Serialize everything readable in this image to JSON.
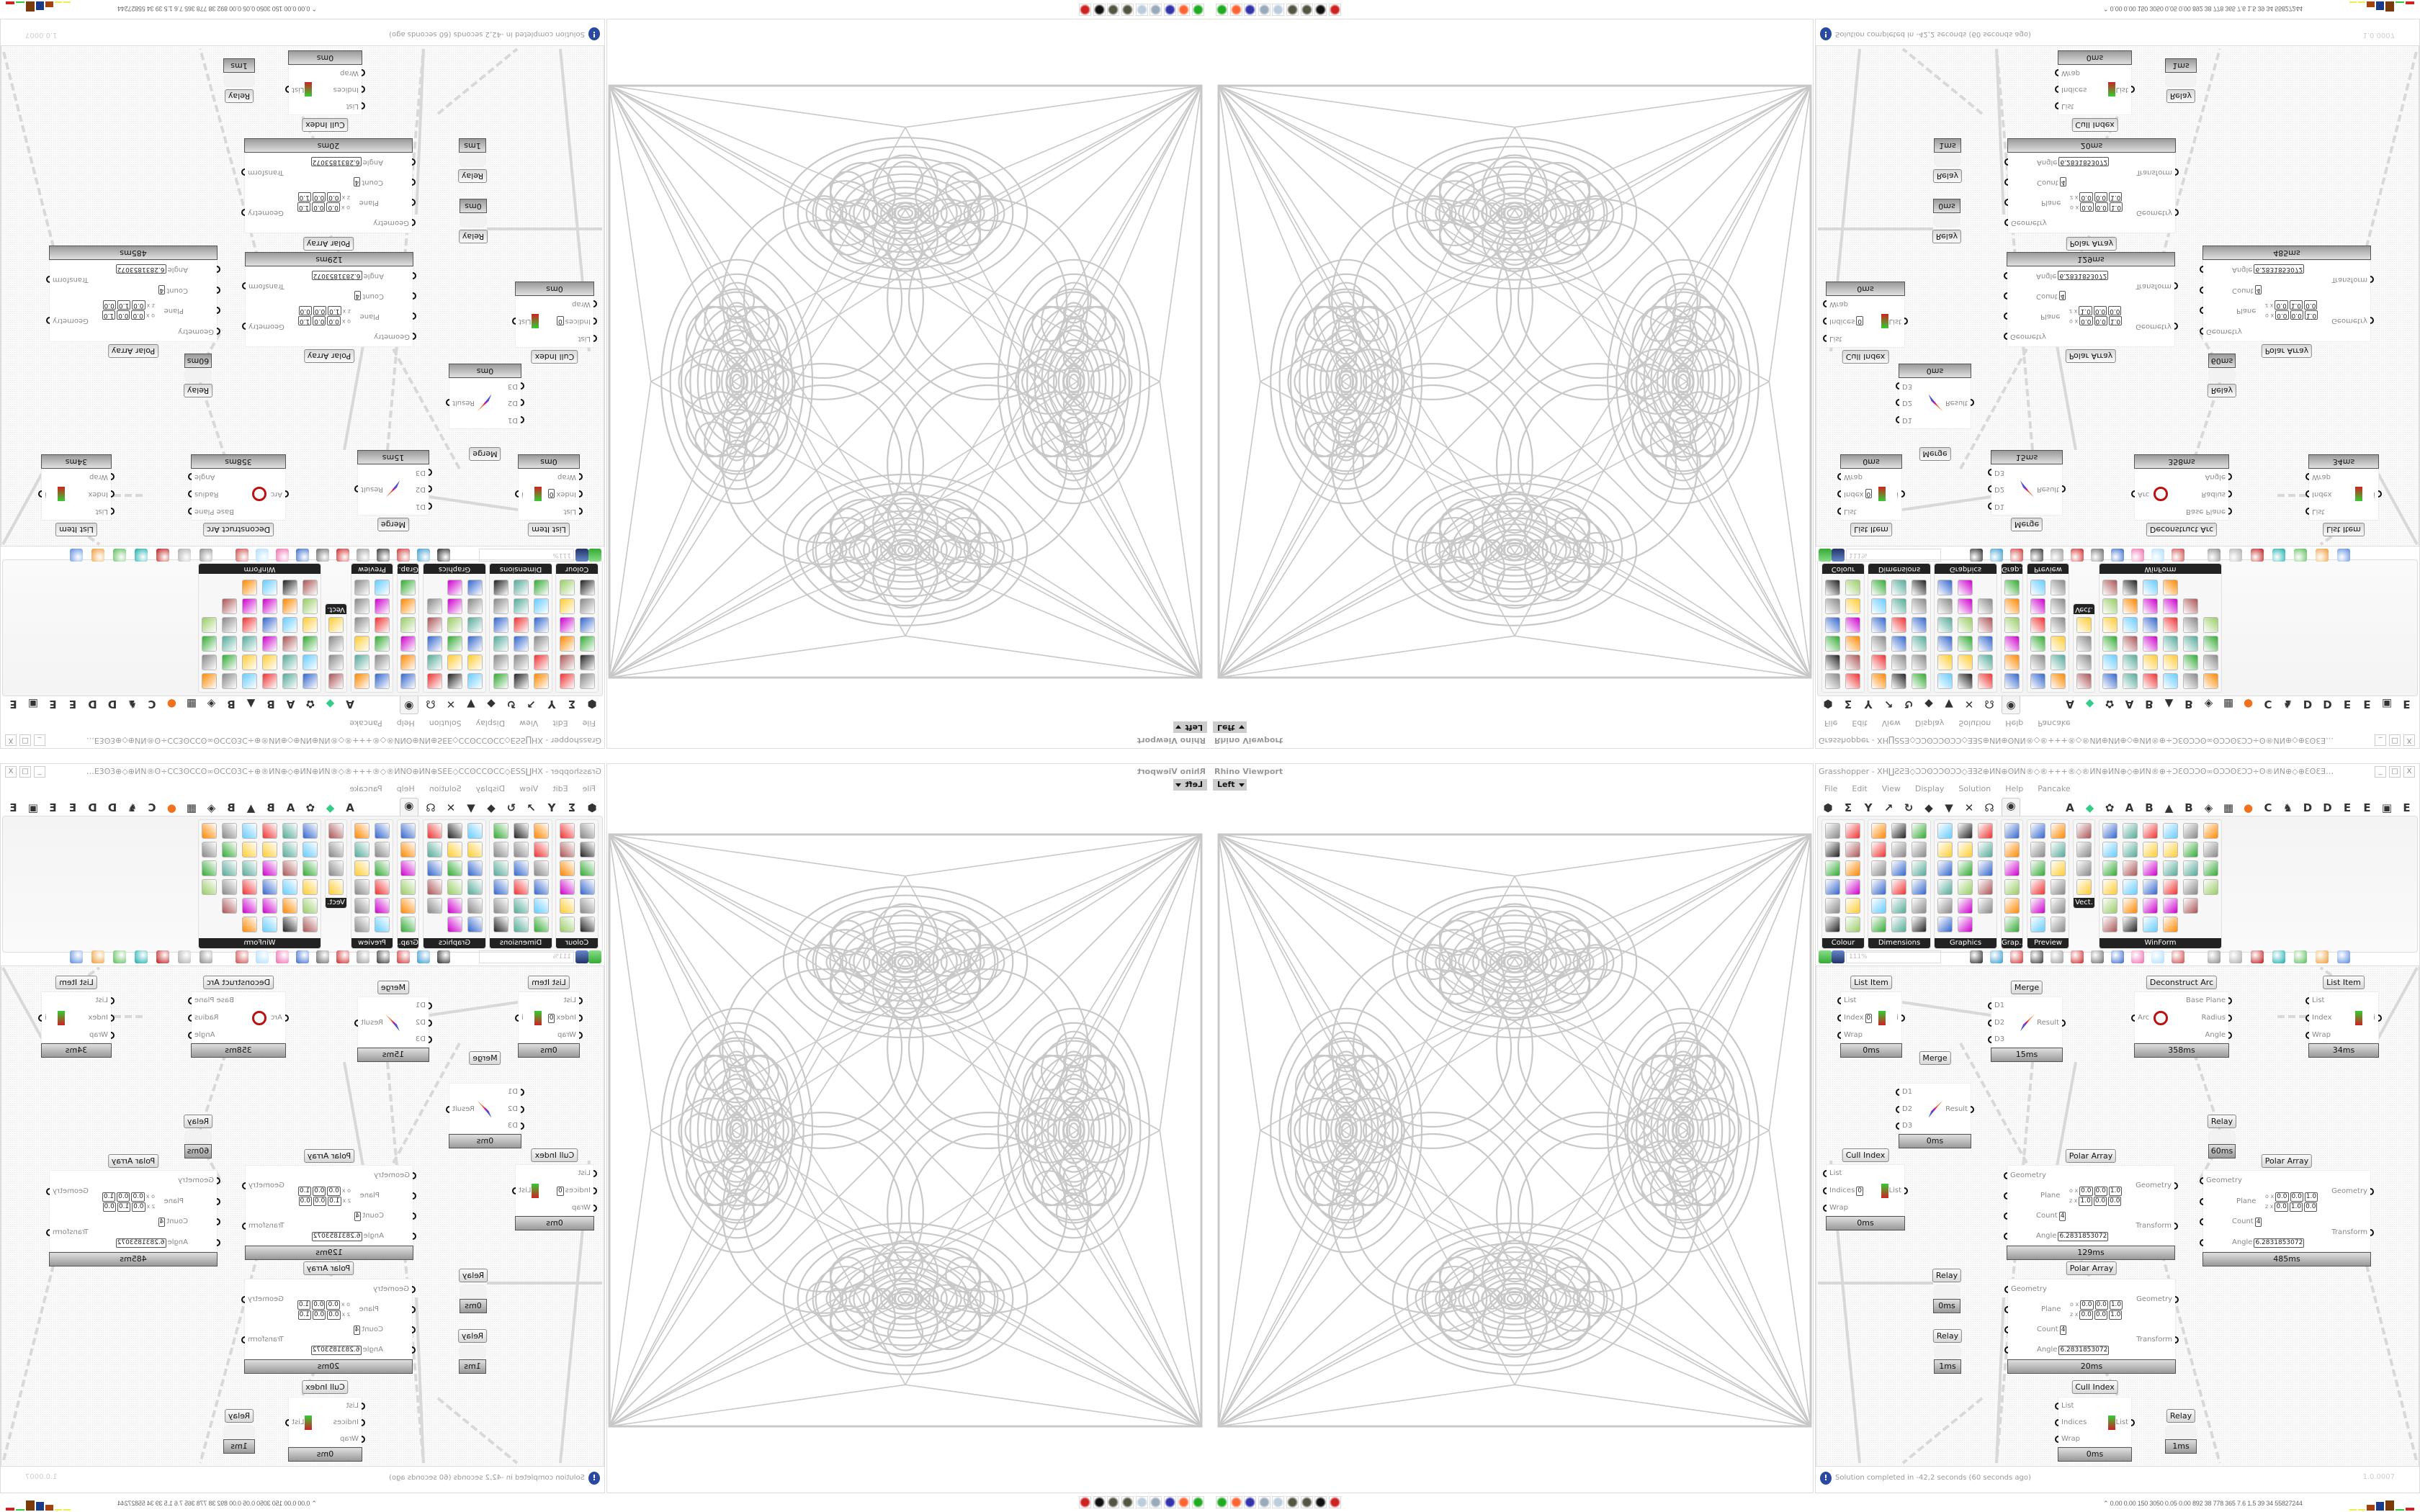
{
  "viewport": {
    "title": "Rhino Viewport",
    "view": "Left"
  },
  "grasshopper": {
    "title": "Grasshopper - XH∐ƧƧƎ◇ƆƆʘƆƆʘƆƆ◇ƎƎƧ⊕ИN⊕ʘИN®◇®+++®◇®ИN⊕ИN⊕◇⊕ИN®⊕÷ƆƐʘƆƆʘ∞ʘƆƆʘƐƆƆ÷ʘ®ИN⊕◇⊕ƐʘƐƎ⊞÷ƧƧ÷⊞ƐʘƐƎ⊕◇⊕ʘƆƆƎ⊞⊕÷ƆƆ...",
    "window_buttons": [
      "_",
      "□",
      "X"
    ],
    "menu": [
      "File",
      "Edit",
      "View",
      "Display",
      "Solution",
      "Help",
      "Pancake"
    ],
    "tabs_left": [
      "⬢",
      "Σ",
      "Y",
      "↗",
      "↻",
      "◆",
      "▼",
      "✕",
      "☊",
      "◉"
    ],
    "tabs_right": [
      "A",
      "◆",
      "✿",
      "A",
      "B",
      "▲",
      "B",
      "◈",
      "▦",
      "●",
      "C",
      "♞",
      "D",
      "D",
      "E",
      "E",
      "▣",
      "E"
    ],
    "active_tab_icon": "eye-icon",
    "ribbon_panels": [
      "Colour",
      "Dimensions",
      "Graphics",
      "Grap...",
      "Preview",
      "Vect.",
      "WinForm"
    ],
    "zoom": "111%",
    "status": "Solution completed in -42,2 seconds (60 seconds ago)",
    "version": "1.0.0007",
    "perf": "0.00 0.00 150 3050 0.05 0.00 892  38  778  365  7.6  1.5  39  34  55827244"
  },
  "canvas": {
    "components": [
      {
        "name": "List Item",
        "inputs": [
          {
            "label": "List"
          },
          {
            "label": "Index",
            "values": [
              "0"
            ]
          },
          {
            "label": "Wrap"
          }
        ],
        "outputs": [
          {
            "label": "i"
          }
        ],
        "time": "0ms"
      },
      {
        "name": "Merge",
        "inputs": [
          {
            "label": "D1"
          },
          {
            "label": "D2"
          },
          {
            "label": "D3"
          }
        ],
        "outputs": [
          {
            "label": "Result"
          }
        ],
        "time": "15ms"
      },
      {
        "name": "Deconstruct Arc",
        "inputs": [
          {
            "label": "Arc"
          }
        ],
        "outputs": [
          {
            "label": "Base Plane"
          },
          {
            "label": "Radius"
          },
          {
            "label": "Angle"
          }
        ],
        "time": "358ms"
      },
      {
        "name": "List Item",
        "inputs": [
          {
            "label": "List"
          },
          {
            "label": "Index"
          },
          {
            "label": "Wrap"
          }
        ],
        "outputs": [
          {
            "label": "i"
          }
        ],
        "time": "34ms"
      },
      {
        "name": "Merge",
        "inputs": [
          {
            "label": "D1"
          },
          {
            "label": "D2"
          },
          {
            "label": "D3"
          }
        ],
        "outputs": [
          {
            "label": "Result"
          }
        ],
        "time": "0ms"
      },
      {
        "name": "Relay",
        "inputs": [],
        "outputs": [],
        "time": "60ms"
      },
      {
        "name": "Cull Index",
        "inputs": [
          {
            "label": "List"
          },
          {
            "label": "Indices",
            "values": [
              "0"
            ]
          },
          {
            "label": "Wrap"
          }
        ],
        "outputs": [
          {
            "label": "List"
          }
        ],
        "time": "0ms"
      },
      {
        "name": "Polar Array",
        "inputs": [
          {
            "label": "Geometry"
          },
          {
            "label": "Plane",
            "values": [
              "o x",
              "0.0",
              "0.0",
              "1.0",
              "z x",
              "1.0",
              "0.0",
              "0.0"
            ]
          },
          {
            "label": "Count",
            "values": [
              "4"
            ]
          },
          {
            "label": "Angle",
            "values": [
              "6.2831853072"
            ]
          }
        ],
        "outputs": [
          {
            "label": "Geometry"
          },
          {
            "label": "Transform"
          }
        ],
        "time": "129ms"
      },
      {
        "name": "Polar Array",
        "inputs": [
          {
            "label": "Geometry"
          },
          {
            "label": "Plane",
            "values": [
              "o x",
              "0.0",
              "0.0",
              "1.0",
              "z x",
              "0.0",
              "1.0",
              "0.0"
            ]
          },
          {
            "label": "Count",
            "values": [
              "4"
            ]
          },
          {
            "label": "Angle",
            "values": [
              "6.2831853072"
            ]
          }
        ],
        "outputs": [
          {
            "label": "Geometry"
          },
          {
            "label": "Transform"
          }
        ],
        "time": "485ms"
      },
      {
        "name": "Polar Array",
        "inputs": [
          {
            "label": "Geometry"
          },
          {
            "label": "Plane",
            "values": [
              "o x",
              "0.0",
              "0.0",
              "1.0",
              "z x",
              "0.0",
              "0.0",
              "1.0"
            ]
          },
          {
            "label": "Count",
            "values": [
              "4"
            ]
          },
          {
            "label": "Angle",
            "values": [
              "6.2831853072"
            ]
          }
        ],
        "outputs": [
          {
            "label": "Geometry"
          },
          {
            "label": "Transform"
          }
        ],
        "time": "20ms"
      },
      {
        "name": "Relay",
        "inputs": [],
        "outputs": [],
        "time": "0ms"
      },
      {
        "name": "Relay",
        "inputs": [],
        "outputs": [],
        "time": "1ms"
      },
      {
        "name": "Cull Index",
        "inputs": [
          {
            "label": "List"
          },
          {
            "label": "Indices"
          },
          {
            "label": "Wrap"
          }
        ],
        "outputs": [
          {
            "label": "List"
          }
        ],
        "time": "0ms"
      },
      {
        "name": "Relay",
        "inputs": [],
        "outputs": [],
        "time": "1ms"
      }
    ]
  },
  "taskbar": [
    "app-icon",
    "firefox-icon",
    "floppy-64-icon",
    "scroll-icon",
    "notepad-icon",
    "gear-icon",
    "gear-icon",
    "rhino-icon",
    "grasshopper-icon"
  ],
  "colors": {
    "footer": "#999999",
    "status_icon": "#2a4aa0",
    "geometry_stroke": "#c8c8c8"
  }
}
